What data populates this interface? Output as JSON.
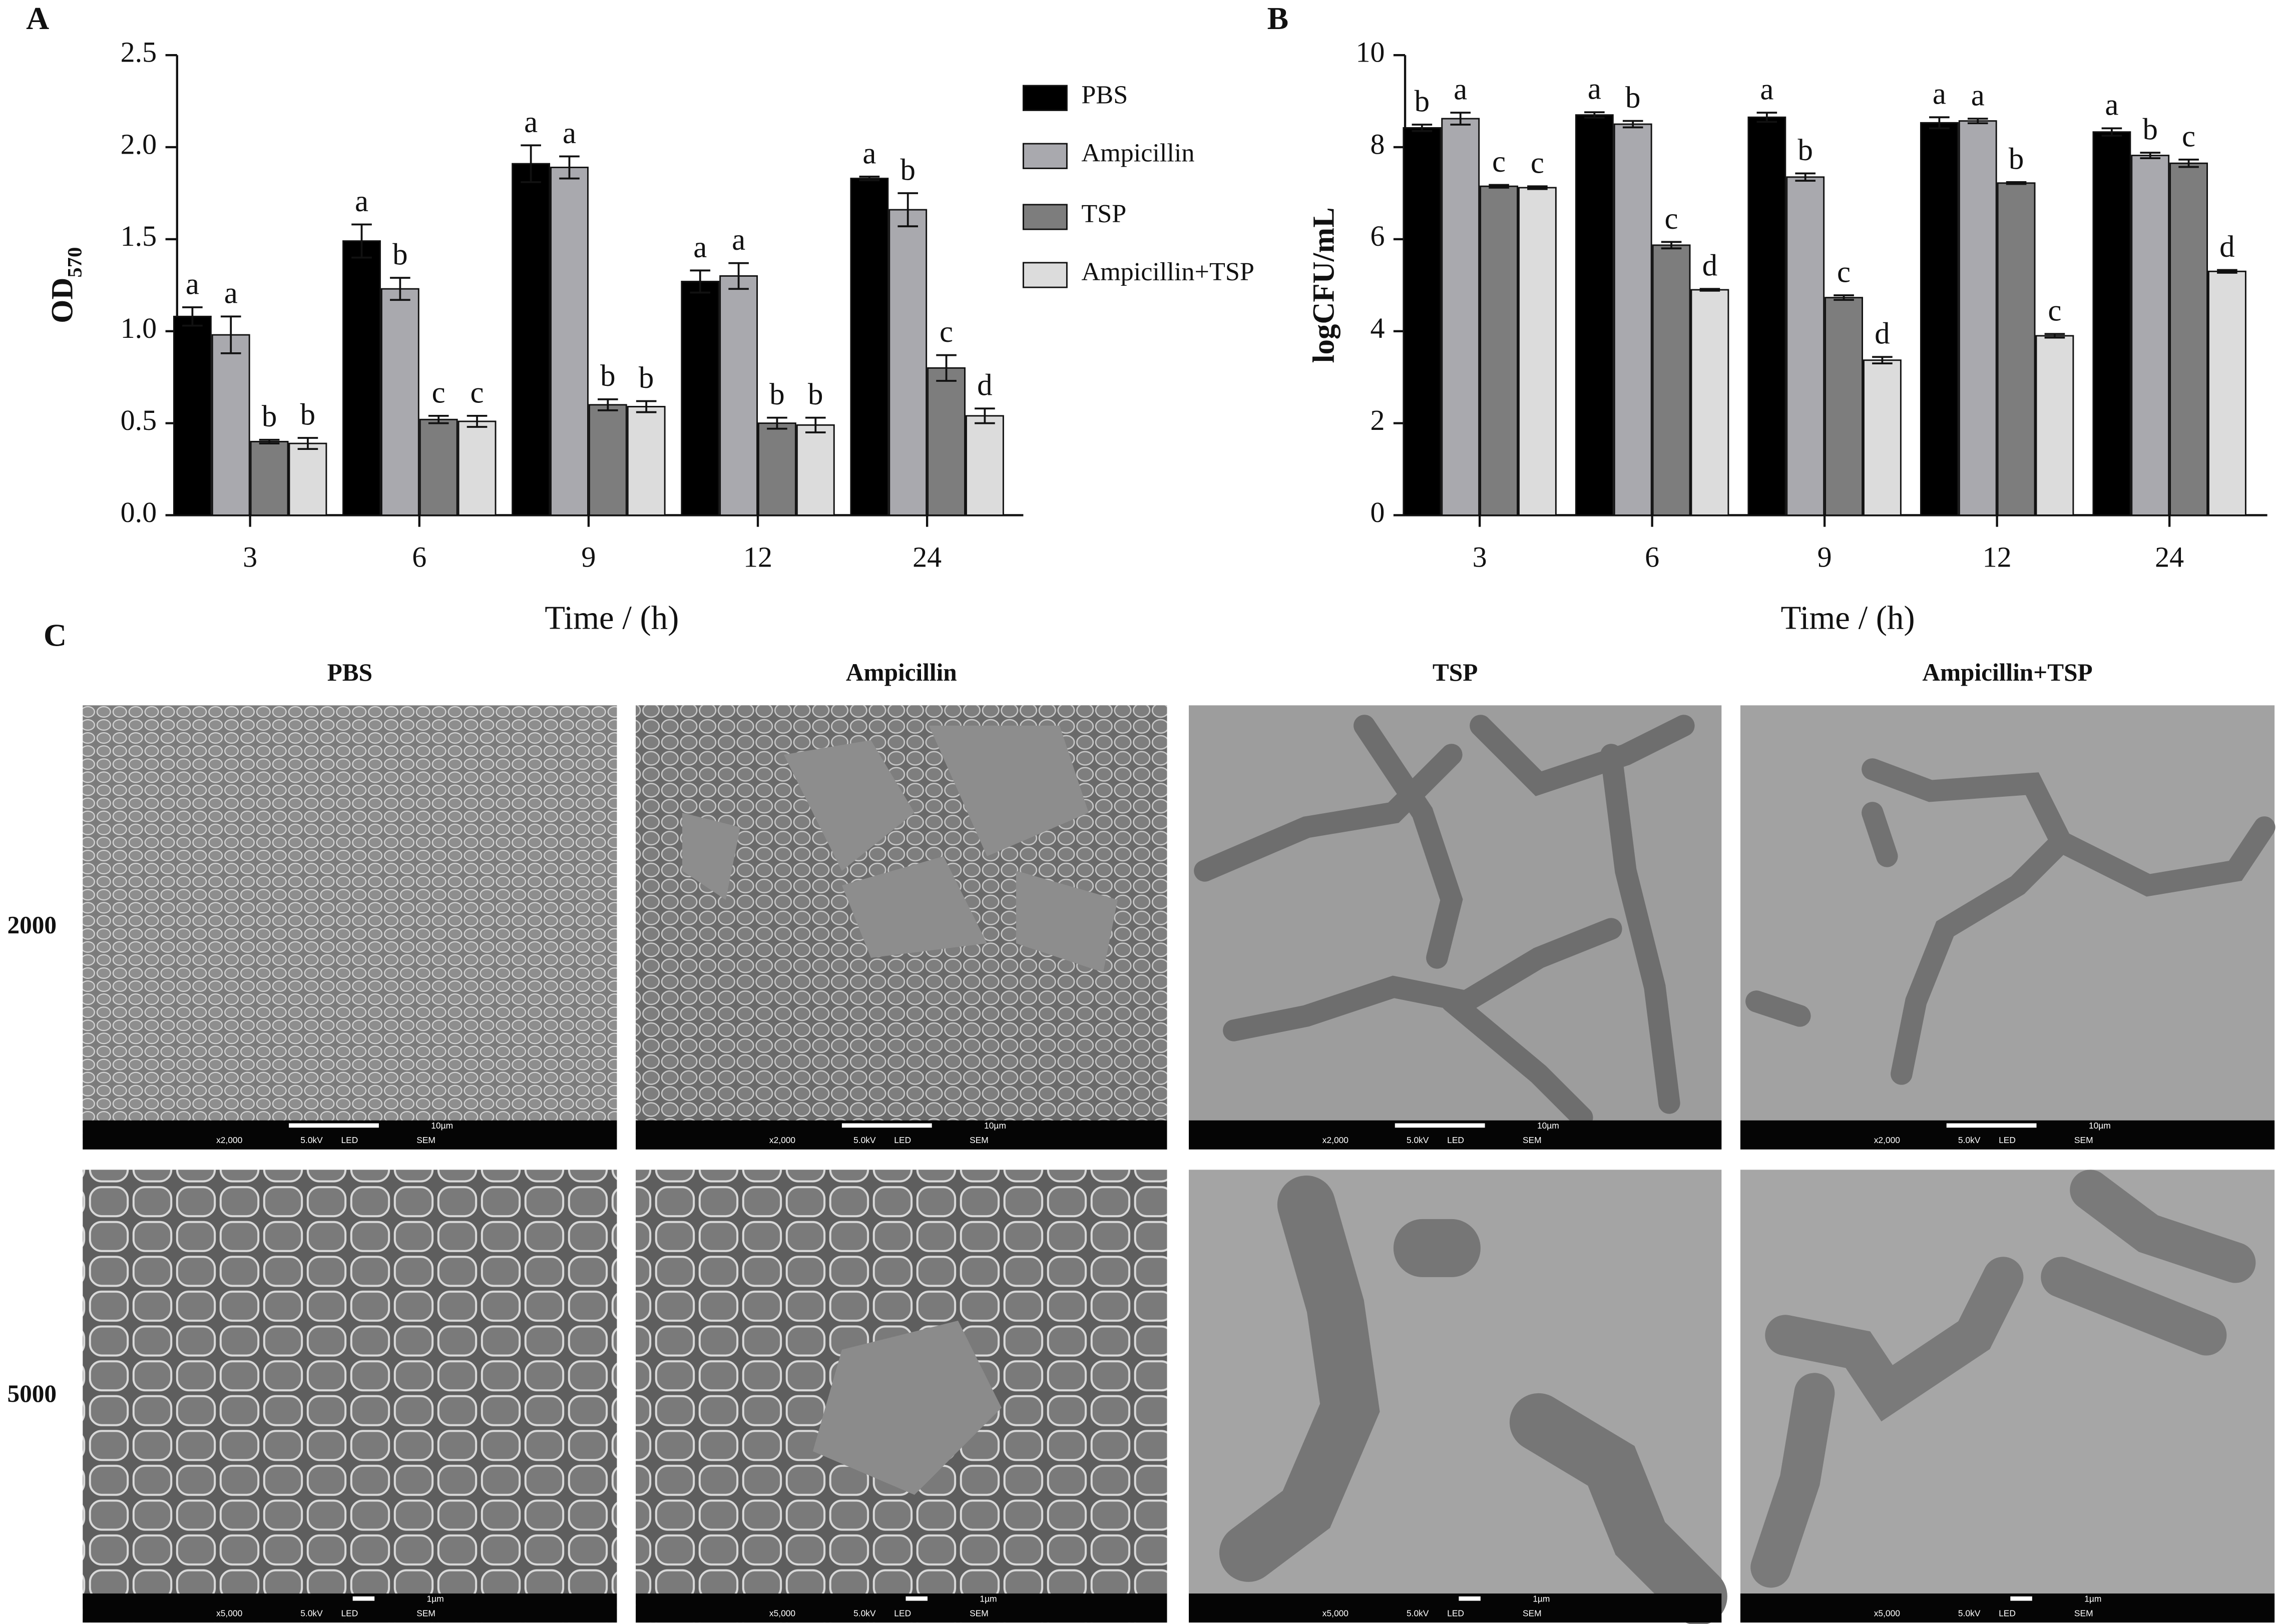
{
  "chart_data": [
    {
      "type": "bar",
      "panel_label": "A",
      "ylabel": "OD",
      "ylabel_sub": "570",
      "xlabel": "Time / (h)",
      "categories": [
        "3",
        "6",
        "9",
        "12",
        "24"
      ],
      "ylim": [
        0,
        2.5
      ],
      "yticks": [
        {
          "value": 0,
          "label": "0.0"
        },
        0.5,
        {
          "value": 1,
          "label": "1.0"
        },
        1.5,
        {
          "value": 2,
          "label": "2.0"
        },
        2.5
      ],
      "legend": "right",
      "series": [
        {
          "name": "PBS",
          "color": "#000000",
          "values": [
            1.08,
            1.49,
            1.91,
            1.27,
            1.83
          ],
          "errors": [
            0.05,
            0.09,
            0.1,
            0.06,
            0.01
          ],
          "letters": [
            "a",
            "a",
            "a",
            "a",
            "a"
          ]
        },
        {
          "name": "Ampicillin",
          "color": "#a9a9ae",
          "values": [
            0.98,
            1.23,
            1.89,
            1.3,
            1.66
          ],
          "errors": [
            0.1,
            0.06,
            0.06,
            0.07,
            0.09
          ],
          "letters": [
            "a",
            "b",
            "a",
            "a",
            "b"
          ]
        },
        {
          "name": "TSP",
          "color": "#7d7d7d",
          "values": [
            0.4,
            0.52,
            0.6,
            0.5,
            0.8
          ],
          "errors": [
            0.01,
            0.02,
            0.03,
            0.03,
            0.07
          ],
          "letters": [
            "b",
            "c",
            "b",
            "b",
            "c"
          ]
        },
        {
          "name": "Ampicillin+TSP",
          "color": "#dcdcdc",
          "values": [
            0.39,
            0.51,
            0.59,
            0.49,
            0.54
          ],
          "errors": [
            0.03,
            0.03,
            0.03,
            0.04,
            0.04
          ],
          "letters": [
            "b",
            "c",
            "b",
            "b",
            "d"
          ]
        }
      ]
    },
    {
      "type": "bar",
      "panel_label": "B",
      "ylabel": "logCFU/mL",
      "xlabel": "Time / (h)",
      "categories": [
        "3",
        "6",
        "9",
        "12",
        "24"
      ],
      "ylim": [
        0,
        10
      ],
      "yticks": [
        0,
        2,
        4,
        6,
        8,
        10
      ],
      "series": [
        {
          "color": "#000000",
          "values": [
            8.42,
            8.7,
            8.65,
            8.53,
            8.33
          ],
          "errors": [
            0.07,
            0.06,
            0.1,
            0.12,
            0.08
          ],
          "letters": [
            "b",
            "a",
            "a",
            "a",
            "a"
          ]
        },
        {
          "color": "#a9a9ae",
          "values": [
            8.62,
            8.5,
            7.35,
            8.57,
            7.82
          ],
          "errors": [
            0.13,
            0.07,
            0.08,
            0.05,
            0.06
          ],
          "letters": [
            "a",
            "b",
            "b",
            "a",
            "b"
          ]
        },
        {
          "color": "#7d7d7d",
          "values": [
            7.15,
            5.87,
            4.73,
            7.22,
            7.65
          ],
          "errors": [
            0.03,
            0.07,
            0.05,
            0.02,
            0.08
          ],
          "letters": [
            "c",
            "c",
            "c",
            "b",
            "c"
          ]
        },
        {
          "color": "#dcdcdc",
          "values": [
            7.12,
            4.9,
            3.37,
            3.9,
            5.3
          ],
          "errors": [
            0.03,
            0.02,
            0.07,
            0.04,
            0.03
          ],
          "letters": [
            "c",
            "d",
            "d",
            "c",
            "d"
          ]
        }
      ]
    }
  ],
  "panel_c": {
    "label": "C",
    "columns": [
      "PBS",
      "Ampicillin",
      "TSP",
      "Ampicillin+TSP"
    ],
    "rows": [
      {
        "label": "2000",
        "magnification": "x2,000",
        "voltage": "5.0kV",
        "detector": "LED",
        "mode": "SEM",
        "scale": "10µm"
      },
      {
        "label": "5000",
        "magnification": "x5,000",
        "voltage": "5.0kV",
        "detector": "LED",
        "mode": "SEM",
        "scale": "1µm"
      }
    ]
  }
}
